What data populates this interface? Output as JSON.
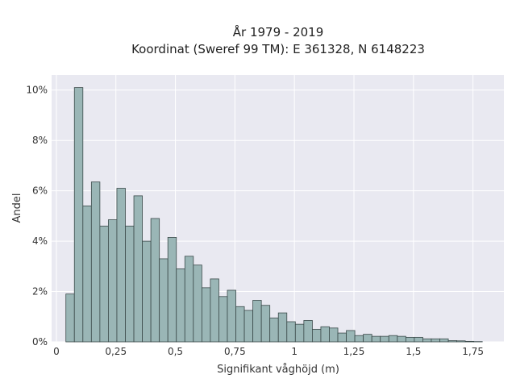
{
  "chart_data": {
    "type": "bar",
    "title_line1": "År 1979 - 2019",
    "title_line2": "Koordinat (Sweref 99 TM): E 361328, N 6148223",
    "xlabel": "Signifikant våghöjd (m)",
    "ylabel": "Andel",
    "xlim": [
      -0.02,
      1.88
    ],
    "ylim": [
      0,
      10.6
    ],
    "xticks": [
      {
        "value": 0,
        "label": "0"
      },
      {
        "value": 0.25,
        "label": "0,25"
      },
      {
        "value": 0.5,
        "label": "0,5"
      },
      {
        "value": 0.75,
        "label": "0,75"
      },
      {
        "value": 1.0,
        "label": "1"
      },
      {
        "value": 1.25,
        "label": "1,25"
      },
      {
        "value": 1.5,
        "label": "1,5"
      },
      {
        "value": 1.75,
        "label": "1,75"
      }
    ],
    "yticks": [
      {
        "value": 0,
        "label": "0%"
      },
      {
        "value": 2,
        "label": "2%"
      },
      {
        "value": 4,
        "label": "4%"
      },
      {
        "value": 6,
        "label": "6%"
      },
      {
        "value": 8,
        "label": "8%"
      },
      {
        "value": 10,
        "label": "10%"
      }
    ],
    "grid": true,
    "bin_start": 0.04,
    "bin_width": 0.0357,
    "values": [
      1.9,
      10.1,
      5.4,
      6.35,
      4.6,
      4.85,
      6.1,
      4.6,
      5.8,
      4.0,
      4.9,
      3.3,
      4.15,
      2.9,
      3.4,
      3.05,
      2.15,
      2.5,
      1.8,
      2.05,
      1.4,
      1.25,
      1.65,
      1.45,
      0.95,
      1.15,
      0.8,
      0.7,
      0.85,
      0.5,
      0.6,
      0.55,
      0.35,
      0.45,
      0.25,
      0.3,
      0.22,
      0.22,
      0.25,
      0.22,
      0.18,
      0.18,
      0.12,
      0.12,
      0.12,
      0.05,
      0.04,
      0.02,
      0.01
    ],
    "colors": {
      "bar_fill": "#9ab6b6",
      "bar_edge": "#3b4a4a",
      "plot_bg": "#e9e9f1",
      "grid": "#ffffff"
    }
  }
}
